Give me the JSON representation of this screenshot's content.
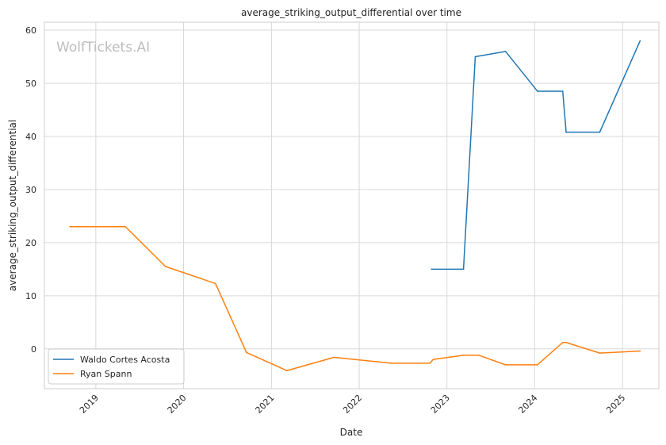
{
  "chart_data": {
    "type": "line",
    "title": "average_striking_output_differential over time",
    "xlabel": "Date",
    "ylabel": "average_striking_output_differential",
    "watermark": "WolfTickets.AI",
    "grid": true,
    "legend_placement": "bottom-left",
    "xlim": [
      "2018-06-01",
      "2025-06-01"
    ],
    "ylim": [
      -7.5,
      61.5
    ],
    "x_ticks": [
      "2019",
      "2020",
      "2021",
      "2022",
      "2023",
      "2024",
      "2025"
    ],
    "y_ticks": [
      0,
      10,
      20,
      30,
      40,
      50,
      60
    ],
    "series": [
      {
        "name": "Waldo Cortes Acosta",
        "color": "#1f77b4",
        "points": [
          {
            "x": "2022-10-29",
            "y": 15.0
          },
          {
            "x": "2023-03-11",
            "y": 15.0
          },
          {
            "x": "2023-04-29",
            "y": 55.0
          },
          {
            "x": "2023-09-02",
            "y": 56.0
          },
          {
            "x": "2024-01-13",
            "y": 48.5
          },
          {
            "x": "2024-04-27",
            "y": 48.5
          },
          {
            "x": "2024-05-11",
            "y": 40.8
          },
          {
            "x": "2024-09-28",
            "y": 40.8
          },
          {
            "x": "2025-03-15",
            "y": 58.0
          }
        ]
      },
      {
        "name": "Ryan Spann",
        "color": "#ff7f0e",
        "points": [
          {
            "x": "2018-09-15",
            "y": 23.0
          },
          {
            "x": "2019-05-04",
            "y": 23.0
          },
          {
            "x": "2019-10-18",
            "y": 15.5
          },
          {
            "x": "2020-05-13",
            "y": 12.3
          },
          {
            "x": "2020-09-19",
            "y": -0.7
          },
          {
            "x": "2021-03-06",
            "y": -4.1
          },
          {
            "x": "2021-09-18",
            "y": -1.6
          },
          {
            "x": "2022-05-14",
            "y": -2.7
          },
          {
            "x": "2022-10-22",
            "y": -2.7
          },
          {
            "x": "2022-11-05",
            "y": -2.0
          },
          {
            "x": "2023-03-11",
            "y": -1.2
          },
          {
            "x": "2023-05-13",
            "y": -1.2
          },
          {
            "x": "2023-09-02",
            "y": -3.0
          },
          {
            "x": "2024-01-13",
            "y": -3.0
          },
          {
            "x": "2024-04-27",
            "y": 1.2
          },
          {
            "x": "2024-05-11",
            "y": 1.2
          },
          {
            "x": "2024-09-28",
            "y": -0.8
          },
          {
            "x": "2025-03-15",
            "y": -0.4
          }
        ]
      }
    ]
  }
}
